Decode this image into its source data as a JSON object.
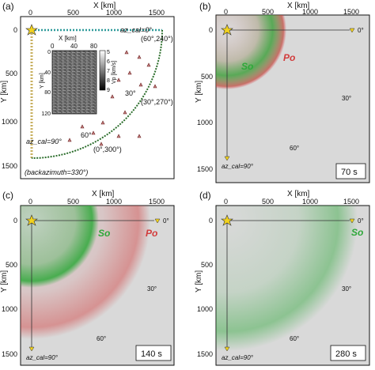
{
  "panels": {
    "a": {
      "letter": "(a)",
      "x_label": "X [km]",
      "y_label": "Y [km]",
      "x_ticks": [
        "0",
        "500",
        "1000",
        "1500"
      ],
      "y_ticks": [
        "0",
        "500",
        "1000",
        "1500"
      ],
      "annotations": {
        "az_cal_0": "az_cal=0°",
        "az_cal_90": "az_cal=90°",
        "pair_60_240": "(60°,240°)",
        "pair_30_270": "(30°,270°)",
        "pair_0_300": "(0°,300°)",
        "deg_30": "30°",
        "deg_60": "60°",
        "backazimuth": "(backazimuth=330°)"
      },
      "inset": {
        "x_label": "X [km]",
        "x_ticks": [
          "0",
          "40",
          "80"
        ],
        "y_label": "Y [km]",
        "y_ticks": [
          "0",
          "40",
          "80",
          "120"
        ],
        "colorbar_label": "Vp [km/s]",
        "colorbar_ticks": [
          "5",
          "6",
          "7",
          "8",
          "9"
        ]
      }
    },
    "b": {
      "letter": "(b)",
      "x_label": "X [km]",
      "y_label": "Y [km]",
      "x_ticks": [
        "0",
        "500",
        "1000",
        "1500"
      ],
      "y_ticks": [
        "0",
        "500",
        "1000",
        "1500"
      ],
      "labels": {
        "Po": "Po",
        "So": "So",
        "deg_0": "0°",
        "deg_30": "30°",
        "deg_60": "60°",
        "az_cal_90": "az_cal=90°"
      },
      "time": "70 s"
    },
    "c": {
      "letter": "(c)",
      "x_label": "X [km]",
      "y_label": "Y [km]",
      "x_ticks": [
        "0",
        "500",
        "1000",
        "1500"
      ],
      "y_ticks": [
        "0",
        "500",
        "1000",
        "1500"
      ],
      "labels": {
        "Po": "Po",
        "So": "So",
        "deg_0": "0°",
        "deg_30": "30°",
        "deg_60": "60°",
        "az_cal_90": "az_cal=90°"
      },
      "time": "140 s"
    },
    "d": {
      "letter": "(d)",
      "x_label": "X [km]",
      "y_label": "Y [km]",
      "x_ticks": [
        "0",
        "500",
        "1000",
        "1500"
      ],
      "y_ticks": [
        "0",
        "500",
        "1000",
        "1500"
      ],
      "labels": {
        "So": "So",
        "deg_0": "0°",
        "deg_30": "30°",
        "deg_60": "60°",
        "az_cal_90": "az_cal=90°"
      },
      "time": "280 s"
    }
  },
  "colors": {
    "p_wave": "#d23c3c",
    "s_wave": "#2fa83a",
    "station_line": "#2e9a9a",
    "station_dots": "#c8b060",
    "star": "#f2d21e",
    "background_map": "#d9d9d9"
  }
}
